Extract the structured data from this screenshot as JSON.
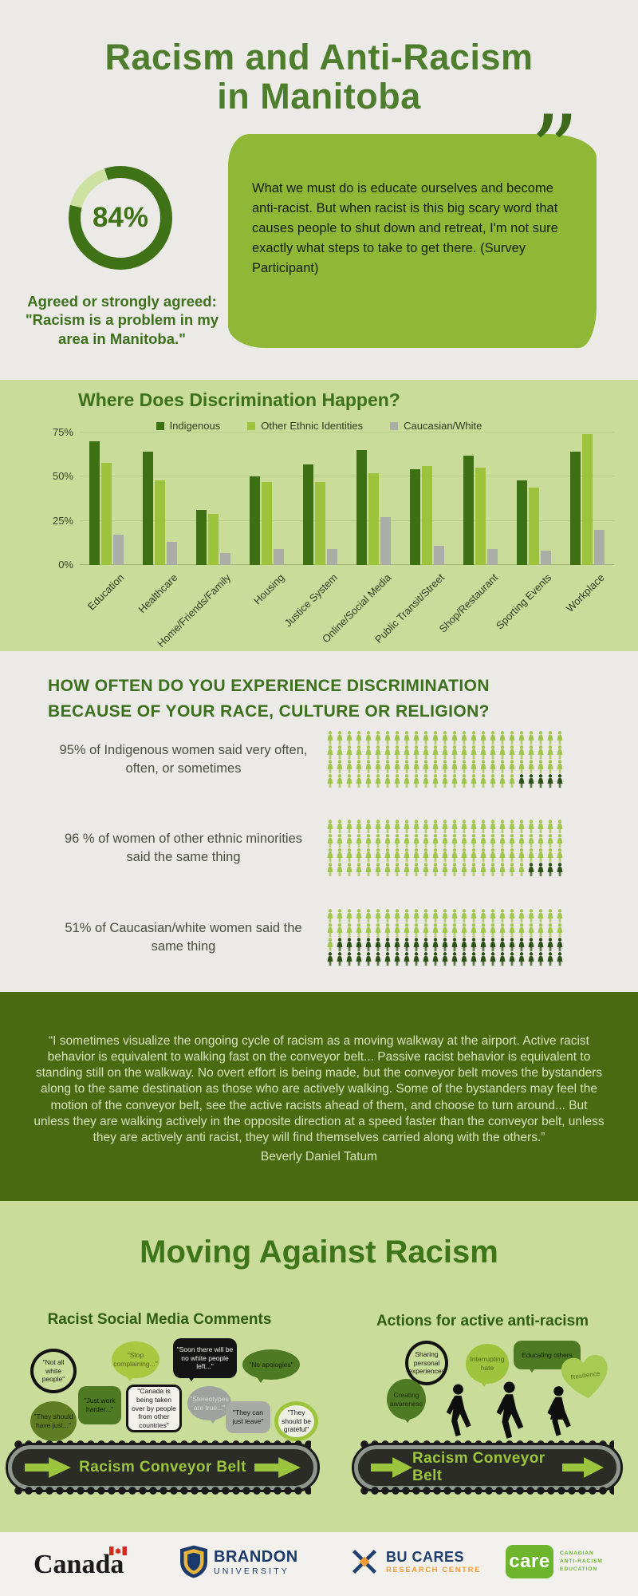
{
  "header": {
    "title_line1": "Racism and Anti-Racism",
    "title_line2": "in Manitoba"
  },
  "stat": {
    "value": "84%",
    "percent": 84,
    "caption": "Agreed or strongly agreed: \"Racism is a problem in my area in Manitoba.\"",
    "colors": {
      "filled": "#3f7216",
      "remainder": "#cde1a0"
    }
  },
  "quote1": {
    "text": "What we must do is educate ourselves and become anti-racist. But when racist is this big scary word that causes people to shut down and retreat, I'm not sure exactly what steps to take to get there. (Survey Participant)"
  },
  "icons": {
    "quote_mark": "”"
  },
  "chart_data": {
    "type": "bar",
    "title": "Where Does Discrimination Happen?",
    "categories": [
      "Education",
      "Healthcare",
      "Home/Friends/Family",
      "Housing",
      "Justice System",
      "Online/Social Media",
      "Public Transit/Street",
      "Shop/Restaurant",
      "Sporting Events",
      "Workplace"
    ],
    "series": [
      {
        "name": "Indigenous",
        "color": "#3c7013",
        "values": [
          70,
          64,
          31,
          50,
          57,
          65,
          54,
          62,
          48,
          64
        ]
      },
      {
        "name": "Other Ethnic Identities",
        "color": "#9dc33c",
        "values": [
          58,
          48,
          29,
          47,
          47,
          52,
          56,
          55,
          44,
          74
        ]
      },
      {
        "name": "Caucasian/White",
        "color": "#abaea6",
        "values": [
          17,
          13,
          7,
          9,
          9,
          27,
          11,
          9,
          8,
          20
        ]
      }
    ],
    "ylabel": "",
    "xlabel": "",
    "ylim": [
      0,
      80
    ],
    "yticks": [
      {
        "value": 75,
        "label": "75%"
      },
      {
        "value": 50,
        "label": "50%"
      },
      {
        "value": 25,
        "label": "25%"
      },
      {
        "value": 0,
        "label": "0%"
      }
    ],
    "grid": true,
    "legend_position": "top"
  },
  "pictograph": {
    "heading_line1": "HOW OFTEN DO YOU EXPERIENCE DISCRIMINATION",
    "heading_line2": "BECAUSE OF YOUR RACE, CULTURE OR RELIGION?",
    "colors": {
      "affected": "#a3c44d",
      "remainder": "#2d5016"
    },
    "rows": [
      {
        "text": "95% of Indigenous women said very often, often, or sometimes",
        "total": 100,
        "affected": 95
      },
      {
        "text": "96 % of women of other ethnic minorities said the same thing",
        "total": 100,
        "affected": 96
      },
      {
        "text": "51% of Caucasian/white women said the same thing",
        "total": 100,
        "affected": 51
      }
    ]
  },
  "walkway_quote": {
    "text": "“I sometimes visualize the ongoing cycle of racism as a moving walkway at the airport. Active racist behavior is equivalent to walking fast on the conveyor belt... Passive racist behavior is equivalent to standing still on the walkway. No overt effort is being made, but the conveyor belt moves the bystanders along to the same destination as those who are actively walking. Some of the bystanders may feel the motion of the conveyor belt, see the active racists ahead of them, and choose to turn around... But unless they are walking actively in the opposite direction at a speed faster than the conveyor belt, unless they are actively anti racist, they will find themselves carried along with the others.”",
    "attribution": "Beverly Daniel Tatum"
  },
  "moving": {
    "title": "Moving Against Racism",
    "belt_label": "Racism Conveyor Belt",
    "left": {
      "heading": "Racist Social Media Comments",
      "bubbles": [
        {
          "text": "\"Not all white people\""
        },
        {
          "text": "\"Stop complaining...\""
        },
        {
          "text": "\"Soon there will be no white people left...\""
        },
        {
          "text": "\"No apologies\""
        },
        {
          "text": "\"They should have just...\""
        },
        {
          "text": "\"Just work harder...\""
        },
        {
          "text": "\"Canada is being taken over by people from other countries\""
        },
        {
          "text": "\"Stereotypes are true...\""
        },
        {
          "text": "\"They can just leave\""
        },
        {
          "text": "\"They should be grateful\""
        }
      ]
    },
    "right": {
      "heading": "Actions for active anti-racism",
      "bubbles": [
        {
          "text": "Sharing personal experiences"
        },
        {
          "text": "Interrupting hate"
        },
        {
          "text": "Educating others"
        },
        {
          "text": "Resilience"
        },
        {
          "text": "Creating awareness"
        }
      ]
    }
  },
  "footer": {
    "canada_wordmark": "Canada",
    "brandon_line1": "BRANDON",
    "brandon_line2": "UNIVERSITY",
    "bucares_line1": "BU CARES",
    "bucares_line2": "RESEARCH CENTRE",
    "care_logo": "care",
    "care_line1": "CANADIAN",
    "care_line2": "ANTI-RACISM",
    "care_line3": "EDUCATION"
  }
}
